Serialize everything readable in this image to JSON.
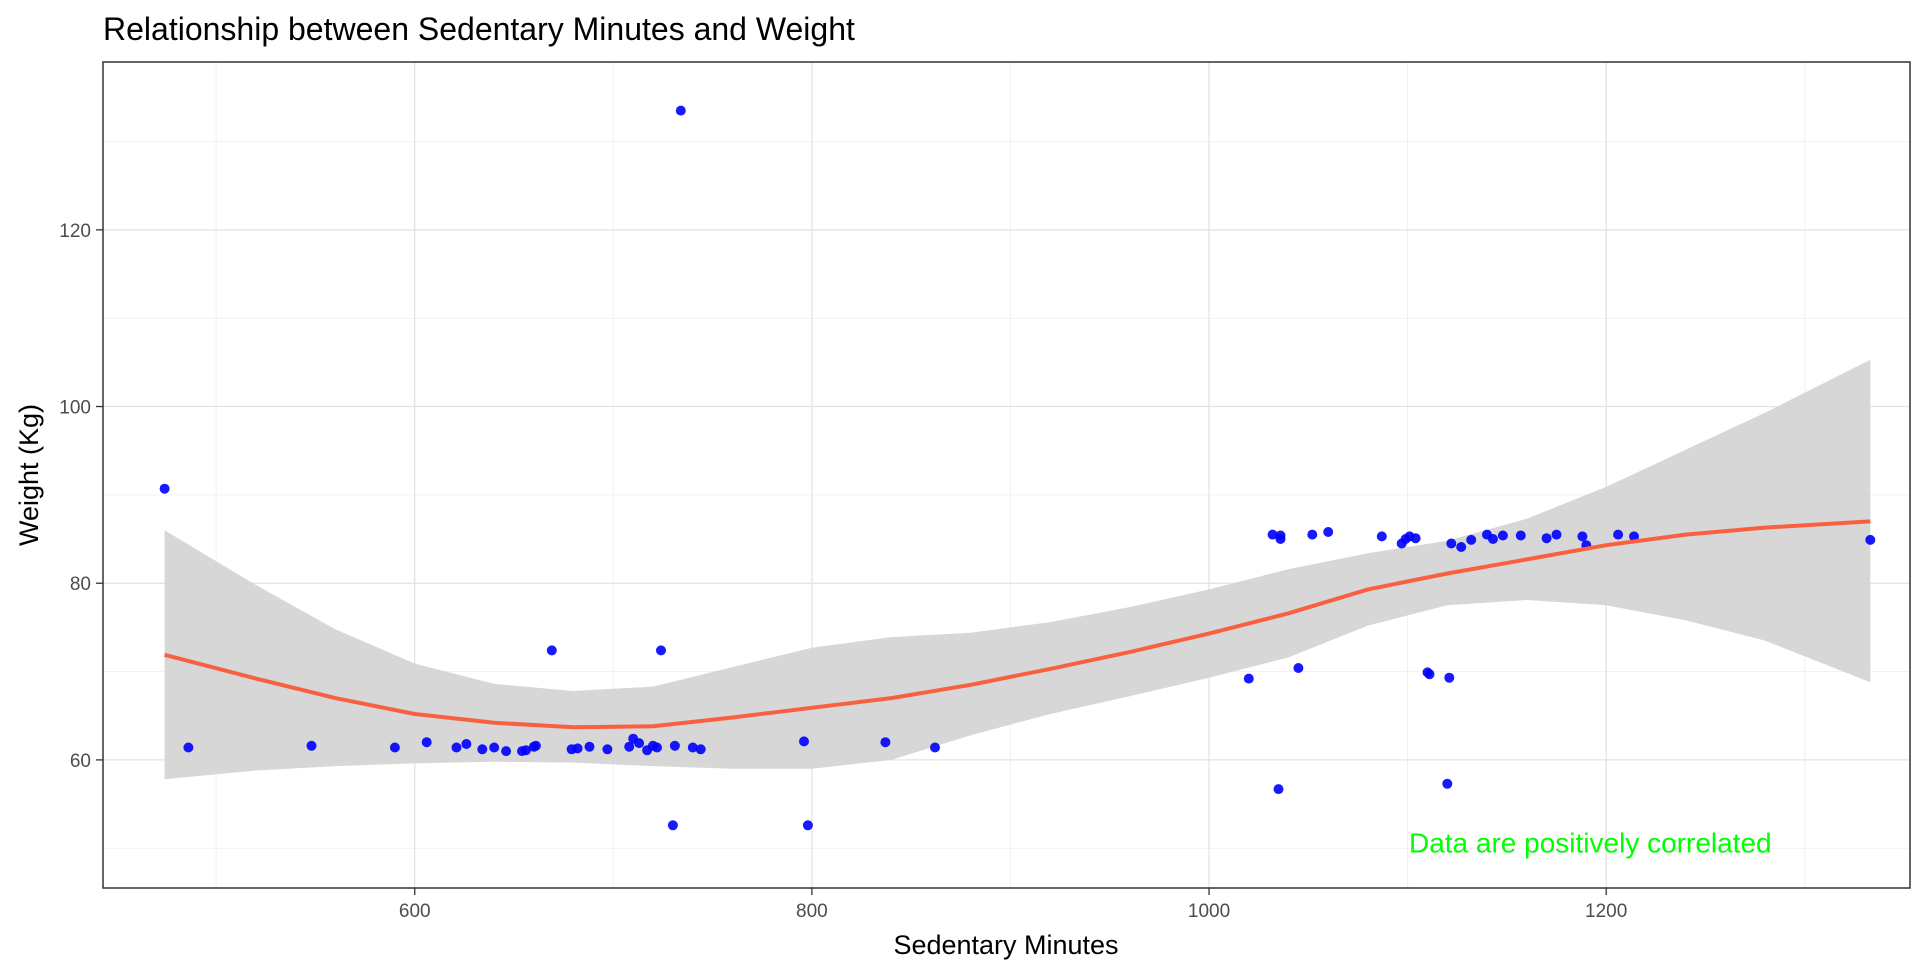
{
  "chart_data": {
    "type": "scatter",
    "title": "Relationship between Sedentary Minutes and Weight",
    "xlabel": "Sedentary Minutes",
    "ylabel": "Weight (Kg)",
    "xlim": [
      443,
      1353
    ],
    "ylim": [
      45.5,
      139
    ],
    "x_ticks": [
      600,
      800,
      1000,
      1200
    ],
    "y_ticks": [
      60,
      80,
      100,
      120
    ],
    "x_minor_ticks": [
      500,
      700,
      900,
      1100,
      1300
    ],
    "y_minor_ticks": [
      50,
      70,
      90,
      110,
      130
    ],
    "grid": true,
    "legend": "none",
    "point_color": "#0000ff",
    "smooth_color": "#f8603f",
    "band_color": "#d3d3d3",
    "annotation": {
      "text": "Data are positively correlated",
      "x": 1192,
      "y": 49.5,
      "color": "#00ff00"
    },
    "points": [
      [
        474,
        90.7
      ],
      [
        486,
        61.4
      ],
      [
        548,
        61.6
      ],
      [
        590,
        61.4
      ],
      [
        606,
        62.0
      ],
      [
        621,
        61.4
      ],
      [
        626,
        61.8
      ],
      [
        634,
        61.2
      ],
      [
        640,
        61.4
      ],
      [
        646,
        61.0
      ],
      [
        654,
        61.0
      ],
      [
        656,
        61.1
      ],
      [
        660,
        61.5
      ],
      [
        661,
        61.6
      ],
      [
        669,
        72.4
      ],
      [
        679,
        61.2
      ],
      [
        682,
        61.3
      ],
      [
        688,
        61.5
      ],
      [
        697,
        61.2
      ],
      [
        708,
        61.5
      ],
      [
        710,
        62.4
      ],
      [
        713,
        61.9
      ],
      [
        717,
        61.1
      ],
      [
        720,
        61.6
      ],
      [
        722,
        61.4
      ],
      [
        724,
        72.4
      ],
      [
        730,
        52.6
      ],
      [
        731,
        61.6
      ],
      [
        734,
        133.5
      ],
      [
        740,
        61.4
      ],
      [
        744,
        61.2
      ],
      [
        796,
        62.1
      ],
      [
        798,
        52.6
      ],
      [
        837,
        62.0
      ],
      [
        862,
        61.4
      ],
      [
        1020,
        69.2
      ],
      [
        1032,
        85.5
      ],
      [
        1035,
        56.7
      ],
      [
        1036,
        85.0
      ],
      [
        1036,
        85.4
      ],
      [
        1045,
        70.4
      ],
      [
        1052,
        85.5
      ],
      [
        1060,
        85.8
      ],
      [
        1087,
        85.3
      ],
      [
        1097,
        84.5
      ],
      [
        1099,
        85.0
      ],
      [
        1101,
        85.3
      ],
      [
        1104,
        85.1
      ],
      [
        1110,
        69.9
      ],
      [
        1111,
        69.7
      ],
      [
        1120,
        57.3
      ],
      [
        1121,
        69.3
      ],
      [
        1122,
        84.5
      ],
      [
        1127,
        84.1
      ],
      [
        1132,
        84.9
      ],
      [
        1140,
        85.5
      ],
      [
        1143,
        85.0
      ],
      [
        1148,
        85.4
      ],
      [
        1157,
        85.4
      ],
      [
        1170,
        85.1
      ],
      [
        1175,
        85.5
      ],
      [
        1188,
        85.3
      ],
      [
        1190,
        84.3
      ],
      [
        1206,
        85.5
      ],
      [
        1214,
        85.3
      ],
      [
        1333,
        84.9
      ]
    ],
    "smooth": {
      "x": [
        474,
        520,
        560,
        600,
        640,
        680,
        720,
        760,
        800,
        840,
        880,
        920,
        960,
        1000,
        1040,
        1080,
        1120,
        1160,
        1200,
        1240,
        1280,
        1333
      ],
      "y": [
        71.9,
        69.2,
        67.0,
        65.2,
        64.2,
        63.7,
        63.8,
        64.8,
        65.9,
        67.0,
        68.5,
        70.3,
        72.2,
        74.3,
        76.6,
        79.3,
        81.1,
        82.7,
        84.3,
        85.5,
        86.3,
        87.0
      ],
      "lower": [
        57.8,
        58.8,
        59.3,
        59.6,
        59.8,
        59.7,
        59.3,
        59.0,
        59.0,
        60.0,
        62.8,
        65.2,
        67.2,
        69.3,
        71.6,
        75.2,
        77.5,
        78.1,
        77.5,
        75.8,
        73.5,
        68.8
      ],
      "upper": [
        86.0,
        79.8,
        74.8,
        70.9,
        68.6,
        67.8,
        68.3,
        70.5,
        72.7,
        73.9,
        74.4,
        75.6,
        77.3,
        79.3,
        81.6,
        83.4,
        84.8,
        87.3,
        90.9,
        95.1,
        99.3,
        105.3
      ]
    }
  }
}
